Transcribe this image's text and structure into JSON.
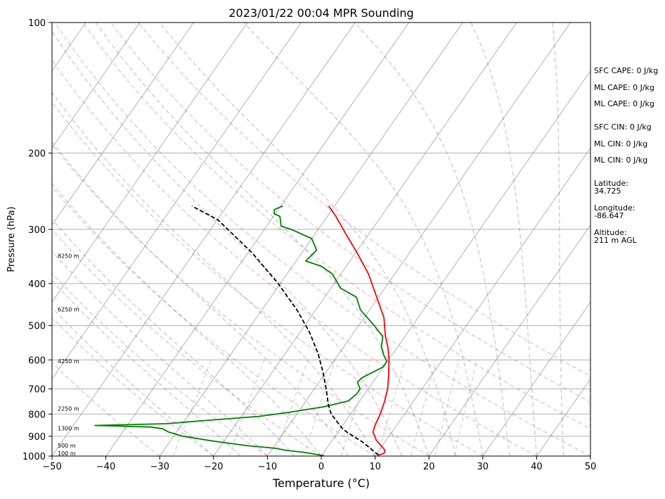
{
  "chart_data": {
    "type": "line",
    "title": "2023/01/22 00:04 MPR Sounding",
    "xlabel": "Temperature (°C)",
    "ylabel": "Pressure (hPa)",
    "xlim": [
      -50,
      50
    ],
    "ylim": [
      1000,
      100
    ],
    "y_scale": "log",
    "x_ticks": [
      "−50",
      "−40",
      "−30",
      "−20",
      "−10",
      "0",
      "10",
      "20",
      "30",
      "40",
      "50"
    ],
    "x_tick_values": [
      -50,
      -40,
      -30,
      -20,
      -10,
      0,
      10,
      20,
      30,
      40,
      50
    ],
    "y_ticks": [
      "100",
      "200",
      "300",
      "400",
      "500",
      "600",
      "700",
      "800",
      "900",
      "1000"
    ],
    "y_tick_values": [
      100,
      200,
      300,
      400,
      500,
      600,
      700,
      800,
      900,
      1000
    ],
    "grid": true,
    "skew_t": true,
    "series": [
      {
        "kind": "temperature",
        "color": "#ff0000",
        "points": [
          [
            10.5,
            995
          ],
          [
            11.3,
            985
          ],
          [
            11.1,
            970
          ],
          [
            10.0,
            950
          ],
          [
            8.2,
            920
          ],
          [
            6.5,
            880
          ],
          [
            6.0,
            850
          ],
          [
            5.5,
            800
          ],
          [
            4.7,
            750
          ],
          [
            3.6,
            700
          ],
          [
            2.0,
            650
          ],
          [
            0.1,
            600
          ],
          [
            -1.8,
            560
          ],
          [
            -3.6,
            530
          ],
          [
            -6.3,
            480
          ],
          [
            -11.2,
            420
          ],
          [
            -14.9,
            380
          ],
          [
            -19.7,
            340
          ],
          [
            -23.9,
            310
          ],
          [
            -28.4,
            280
          ],
          [
            -31.1,
            265
          ]
        ]
      },
      {
        "kind": "dewpoint",
        "color": "#008000",
        "points": [
          [
            0.5,
            998
          ],
          [
            -3.7,
            980
          ],
          [
            -7.3,
            970
          ],
          [
            -9.3,
            960
          ],
          [
            -15.5,
            945
          ],
          [
            -21.6,
            925
          ],
          [
            -28.3,
            900
          ],
          [
            -31.5,
            880
          ],
          [
            -33.0,
            865
          ],
          [
            -35.5,
            857
          ],
          [
            -46.0,
            850
          ],
          [
            -33.0,
            842
          ],
          [
            -26.2,
            828
          ],
          [
            -16.7,
            810
          ],
          [
            -11.8,
            793
          ],
          [
            -6.0,
            770
          ],
          [
            -2.1,
            746
          ],
          [
            -1.5,
            720
          ],
          [
            -1.5,
            700
          ],
          [
            -2.9,
            675
          ],
          [
            -2.6,
            660
          ],
          [
            -1.5,
            643
          ],
          [
            -0.1,
            623
          ],
          [
            -0.1,
            605
          ],
          [
            -1.5,
            585
          ],
          [
            -3.0,
            560
          ],
          [
            -4.1,
            530
          ],
          [
            -7.1,
            500
          ],
          [
            -11.7,
            460
          ],
          [
            -14.1,
            430
          ],
          [
            -18.2,
            410
          ],
          [
            -21.6,
            380
          ],
          [
            -24.6,
            365
          ],
          [
            -28.2,
            355
          ],
          [
            -27.6,
            335
          ],
          [
            -30.0,
            315
          ],
          [
            -35.0,
            300
          ],
          [
            -37.3,
            295
          ],
          [
            -38.8,
            280
          ],
          [
            -40.2,
            276
          ],
          [
            -40.7,
            270
          ],
          [
            -39.6,
            265
          ]
        ]
      },
      {
        "kind": "parcel",
        "color": "#000000",
        "points": [
          [
            10.5,
            995
          ],
          [
            6.0,
            930
          ],
          [
            1.6,
            880
          ],
          [
            0.1,
            860
          ],
          [
            -3.6,
            800
          ],
          [
            -5.4,
            760
          ],
          [
            -7.8,
            700
          ],
          [
            -10.6,
            640
          ],
          [
            -13.9,
            580
          ],
          [
            -18.1,
            520
          ],
          [
            -23.5,
            460
          ],
          [
            -30.4,
            400
          ],
          [
            -39.2,
            340
          ],
          [
            -49.9,
            285
          ],
          [
            -56.5,
            265
          ]
        ]
      }
    ],
    "height_labels": [
      "100 m",
      "500 m",
      "1300 m",
      "2250 m",
      "4250 m",
      "6250 m",
      "8250 m"
    ],
    "height_label_pressures": [
      985,
      945,
      863,
      777,
      604,
      459,
      345
    ],
    "reference_lines": {
      "isotherm_color": "#808080",
      "dry_adiabat_color": "#ff0000",
      "moist_adiabat_color": "#0000ff",
      "mixing_ratio_color": "#008000"
    }
  },
  "stats": {
    "sfc_cape": "SFC CAPE: 0 J/kg",
    "ml_cape_1": "ML CAPE: 0 J/kg",
    "ml_cape_2": "ML CAPE: 0 J/kg",
    "sfc_cin": "SFC CIN: 0 J/kg",
    "ml_cin_1": "ML CIN: 0 J/kg",
    "ml_cin_2": "ML CIN: 0 J/kg",
    "latitude_label": "Latitude:",
    "latitude_value": "34.725",
    "longitude_label": "Longitude:",
    "longitude_value": "-86.647",
    "altitude_label": "Altitude:",
    "altitude_value": "211 m AGL"
  }
}
